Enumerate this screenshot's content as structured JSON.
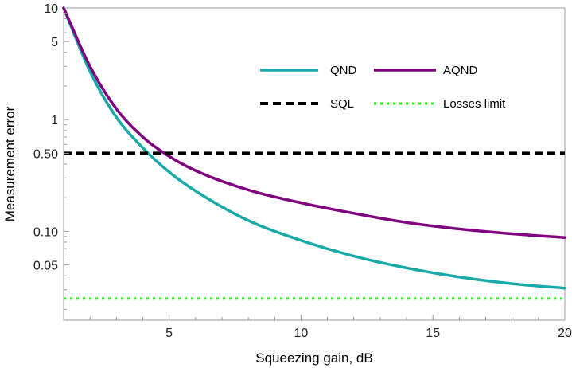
{
  "chart_data": {
    "type": "line",
    "x_scale": "linear",
    "y_scale": "log",
    "xlabel": "Squeezing gain, dB",
    "ylabel": "Measurement error",
    "xlim": [
      1,
      20
    ],
    "ylim": [
      0.016,
      10
    ],
    "x_ticks": [
      {
        "value": 5,
        "label": "5"
      },
      {
        "value": 10,
        "label": "10"
      },
      {
        "value": 15,
        "label": "15"
      },
      {
        "value": 20,
        "label": "20"
      }
    ],
    "y_ticks": [
      {
        "value": 10,
        "label": "10"
      },
      {
        "value": 5,
        "label": "5"
      },
      {
        "value": 1,
        "label": "1"
      },
      {
        "value": 0.5,
        "label": "0.50"
      },
      {
        "value": 0.1,
        "label": "0.10"
      },
      {
        "value": 0.05,
        "label": "0.05"
      }
    ],
    "series": [
      {
        "name": "QND",
        "color": "#17aaa8",
        "style": "solid",
        "x": [
          1,
          2,
          3,
          4,
          5,
          6,
          8,
          10,
          12,
          14,
          16,
          18,
          20
        ],
        "y": [
          10,
          2.7,
          1.05,
          0.56,
          0.34,
          0.23,
          0.125,
          0.083,
          0.06,
          0.047,
          0.039,
          0.034,
          0.031
        ]
      },
      {
        "name": "AQND",
        "color": "#800080",
        "style": "solid",
        "x": [
          1,
          2,
          3,
          4,
          5,
          6,
          8,
          10,
          12,
          14,
          16,
          18,
          20
        ],
        "y": [
          10,
          3.0,
          1.25,
          0.7,
          0.47,
          0.35,
          0.235,
          0.18,
          0.145,
          0.12,
          0.105,
          0.095,
          0.088
        ]
      },
      {
        "name": "SQL",
        "color": "#000000",
        "style": "dashed",
        "x": [
          1,
          20
        ],
        "y": [
          0.5,
          0.5
        ]
      },
      {
        "name": "Losses limit",
        "color": "#22ee22",
        "style": "dotted",
        "x": [
          1,
          20
        ],
        "y": [
          0.025,
          0.025
        ]
      }
    ],
    "legend": [
      {
        "label": "QND",
        "color": "#17aaa8",
        "style": "solid"
      },
      {
        "label": "AQND",
        "color": "#800080",
        "style": "solid"
      },
      {
        "label": "SQL",
        "color": "#000000",
        "style": "dashed"
      },
      {
        "label": "Losses limit",
        "color": "#22ee22",
        "style": "dotted"
      }
    ],
    "legend_position": "top-right",
    "grid": false
  }
}
